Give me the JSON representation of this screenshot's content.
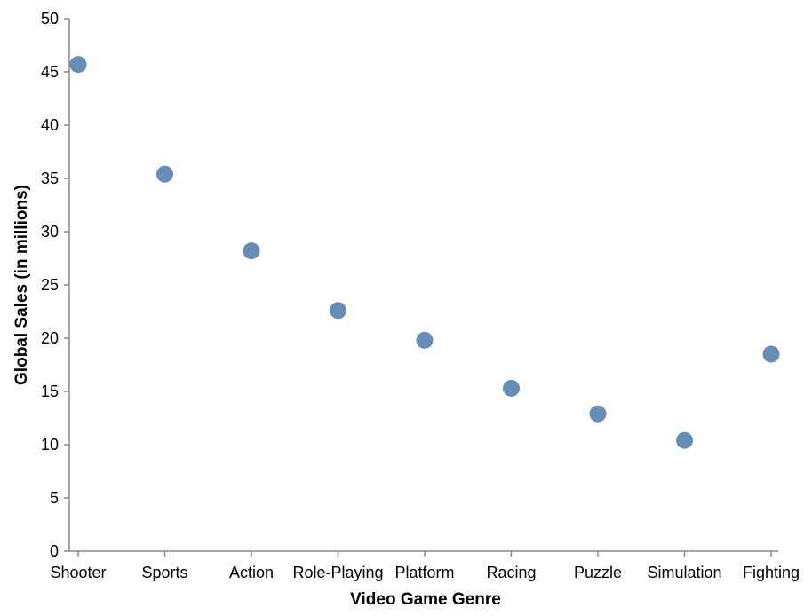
{
  "chart_data": {
    "type": "scatter",
    "xlabel": "Video Game Genre",
    "ylabel": "Global Sales (in millions)",
    "ylim": [
      0,
      50
    ],
    "yticks": [
      0,
      5,
      10,
      15,
      20,
      25,
      30,
      35,
      40,
      45,
      50
    ],
    "grid": false,
    "point_color": "#4c78a8",
    "axis_color": "#888888",
    "categories": [
      "Shooter",
      "Sports",
      "Action",
      "Role-Playing",
      "Platform",
      "Racing",
      "Puzzle",
      "Simulation",
      "Fighting"
    ],
    "values": [
      45.7,
      35.4,
      28.2,
      22.6,
      19.8,
      15.3,
      12.9,
      10.4,
      18.5
    ]
  }
}
